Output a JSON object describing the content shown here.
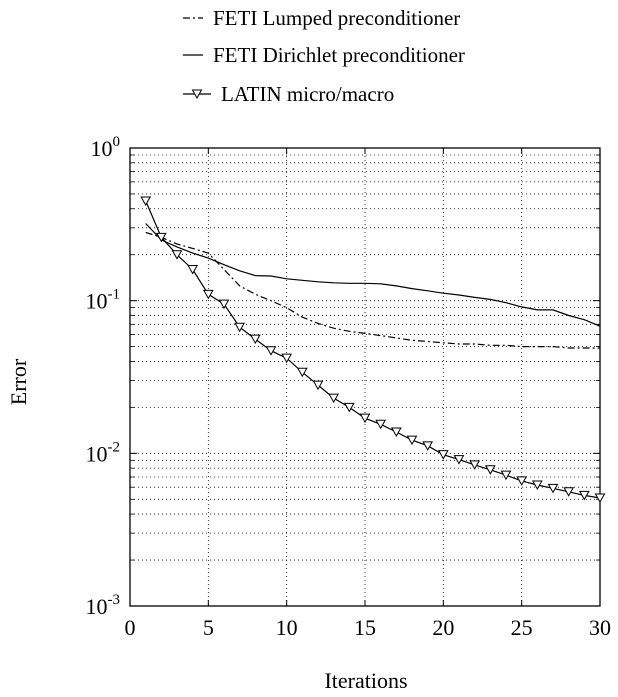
{
  "chart_data": {
    "type": "line",
    "xlabel": "Iterations",
    "ylabel": "Error",
    "xlim": [
      0,
      30
    ],
    "ylim": [
      0.001,
      1
    ],
    "yscale": "log",
    "grid": true,
    "legend_position": "top",
    "xticks": [
      0,
      5,
      10,
      15,
      20,
      25,
      30
    ],
    "xtick_labels": [
      "0",
      "5",
      "10",
      "15",
      "20",
      "25",
      "30"
    ],
    "yticks": [
      0.001,
      0.01,
      0.1,
      1
    ],
    "ytick_labels": [
      {
        "base": "10",
        "exp": "-3"
      },
      {
        "base": "10",
        "exp": "-2"
      },
      {
        "base": "10",
        "exp": "-1"
      },
      {
        "base": "10",
        "exp": "0"
      }
    ],
    "series": [
      {
        "name": "FETI Lumped preconditioner",
        "style": "dashdot",
        "marker": "none",
        "color": "#000000",
        "x": [
          1,
          2,
          3,
          4,
          5,
          6,
          7,
          8,
          9,
          10,
          11,
          12,
          13,
          14,
          15,
          16,
          17,
          18,
          19,
          20,
          21,
          22,
          23,
          24,
          25,
          26,
          27,
          28,
          29,
          30
        ],
        "y": [
          0.28,
          0.26,
          0.235,
          0.22,
          0.205,
          0.16,
          0.125,
          0.11,
          0.1,
          0.09,
          0.078,
          0.071,
          0.066,
          0.063,
          0.061,
          0.059,
          0.057,
          0.055,
          0.054,
          0.053,
          0.052,
          0.052,
          0.051,
          0.051,
          0.05,
          0.05,
          0.05,
          0.049,
          0.049,
          0.049
        ]
      },
      {
        "name": "FETI Dirichlet preconditioner",
        "style": "solid",
        "marker": "none",
        "color": "#000000",
        "x": [
          1,
          2,
          3,
          4,
          5,
          6,
          7,
          8,
          9,
          10,
          11,
          12,
          13,
          14,
          15,
          16,
          17,
          18,
          19,
          20,
          21,
          22,
          23,
          24,
          25,
          26,
          27,
          28,
          29,
          30
        ],
        "y": [
          0.32,
          0.25,
          0.225,
          0.205,
          0.19,
          0.172,
          0.157,
          0.146,
          0.145,
          0.139,
          0.136,
          0.133,
          0.131,
          0.13,
          0.13,
          0.129,
          0.125,
          0.12,
          0.116,
          0.112,
          0.109,
          0.105,
          0.102,
          0.097,
          0.091,
          0.087,
          0.087,
          0.08,
          0.075,
          0.068
        ]
      },
      {
        "name": "LATIN micro/macro",
        "style": "solid",
        "marker": "triangle-down",
        "color": "#000000",
        "x": [
          1,
          2,
          3,
          4,
          5,
          6,
          7,
          8,
          9,
          10,
          11,
          12,
          13,
          14,
          15,
          16,
          17,
          18,
          19,
          20,
          21,
          22,
          23,
          24,
          25,
          26,
          27,
          28,
          29,
          30
        ],
        "y": [
          0.45,
          0.26,
          0.2,
          0.16,
          0.11,
          0.095,
          0.067,
          0.056,
          0.047,
          0.042,
          0.034,
          0.028,
          0.023,
          0.02,
          0.017,
          0.0155,
          0.0138,
          0.0122,
          0.0112,
          0.0098,
          0.0091,
          0.0084,
          0.0078,
          0.0072,
          0.0066,
          0.0062,
          0.0059,
          0.0056,
          0.0053,
          0.0051
        ]
      }
    ]
  }
}
